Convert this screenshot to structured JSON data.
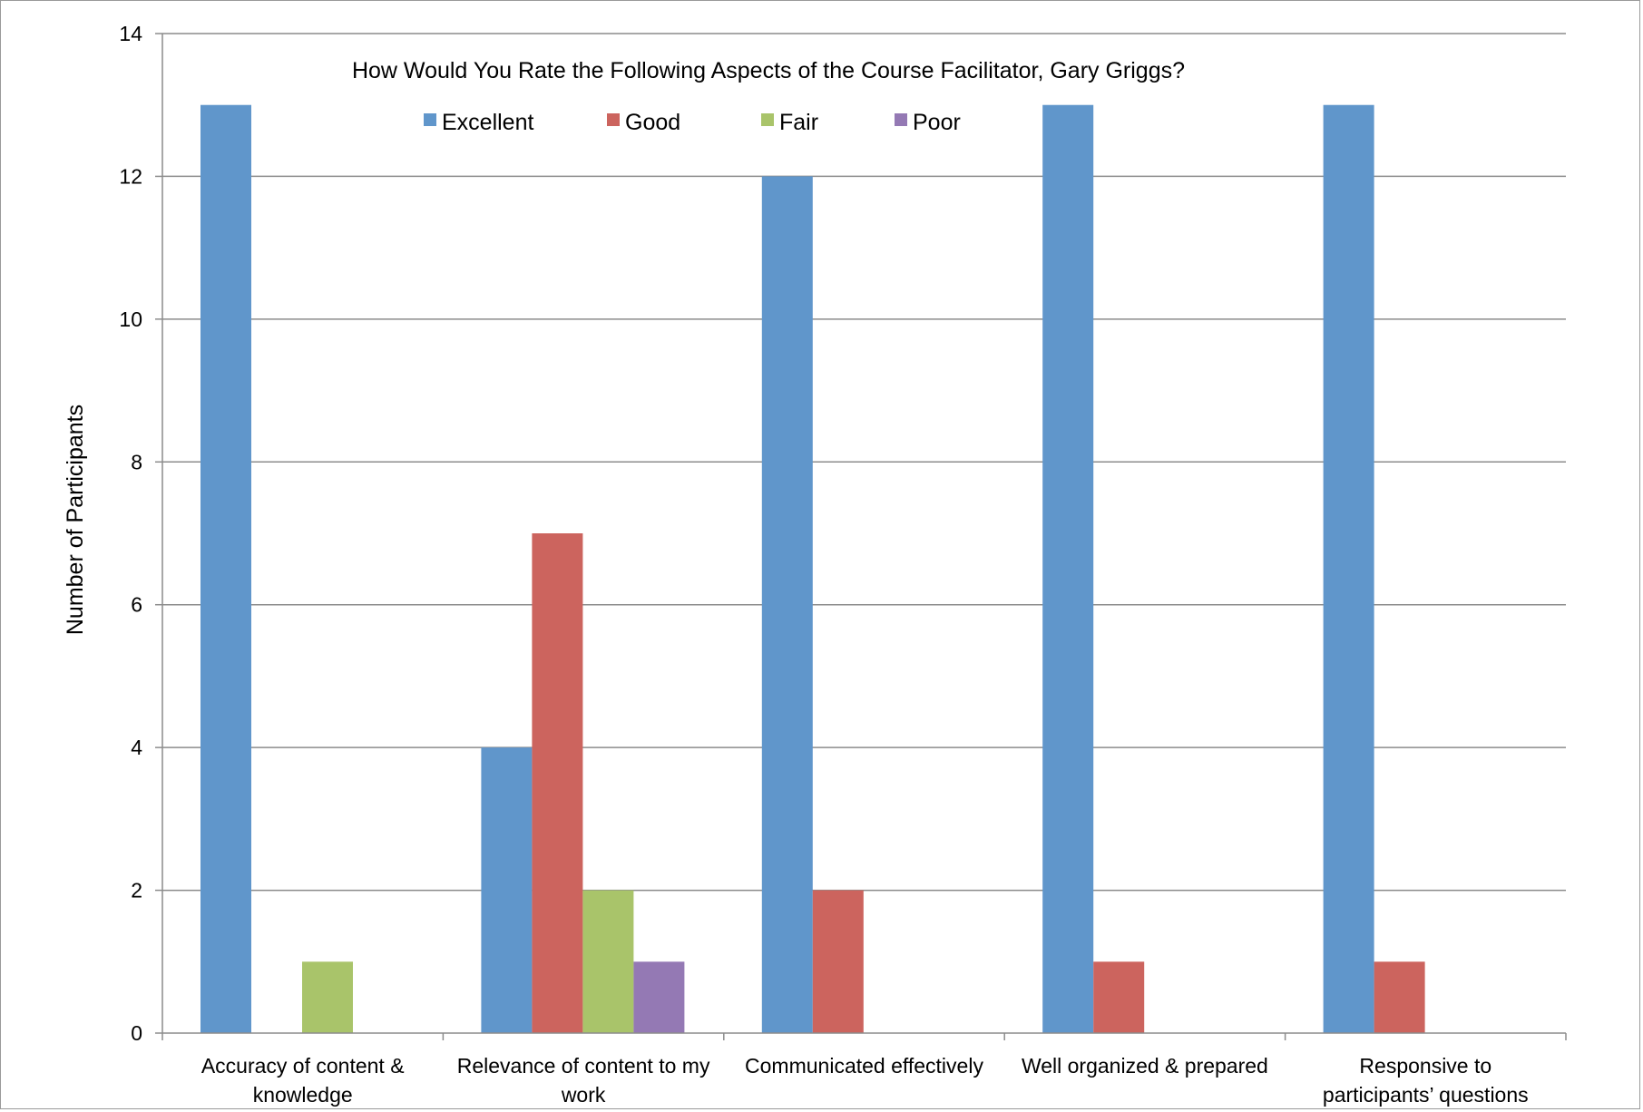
{
  "chart_data": {
    "type": "bar",
    "title": "How Would You Rate the Following Aspects of the Course Facilitator, Gary Griggs?",
    "xlabel": "",
    "ylabel": "Number of Participants",
    "ylim": [
      0,
      14
    ],
    "yticks": [
      "0",
      "2",
      "4",
      "6",
      "8",
      "10",
      "12",
      "14"
    ],
    "grid": true,
    "legend_position": "top-center",
    "categories": [
      [
        "Accuracy of content &",
        "knowledge"
      ],
      [
        "Relevance of content to my",
        "work"
      ],
      [
        "Communicated effectively"
      ],
      [
        "Well organized & prepared"
      ],
      [
        "Responsive to",
        "participants’ questions"
      ]
    ],
    "series": [
      {
        "name": "Excellent",
        "color": "#6096CB",
        "values": [
          13,
          4,
          12,
          13,
          13
        ]
      },
      {
        "name": "Good",
        "color": "#CC645E",
        "values": [
          0,
          7,
          2,
          1,
          1
        ]
      },
      {
        "name": "Fair",
        "color": "#A9C46A",
        "values": [
          1,
          2,
          0,
          0,
          0
        ]
      },
      {
        "name": "Poor",
        "color": "#9479B4",
        "values": [
          0,
          1,
          0,
          0,
          0
        ]
      }
    ]
  }
}
